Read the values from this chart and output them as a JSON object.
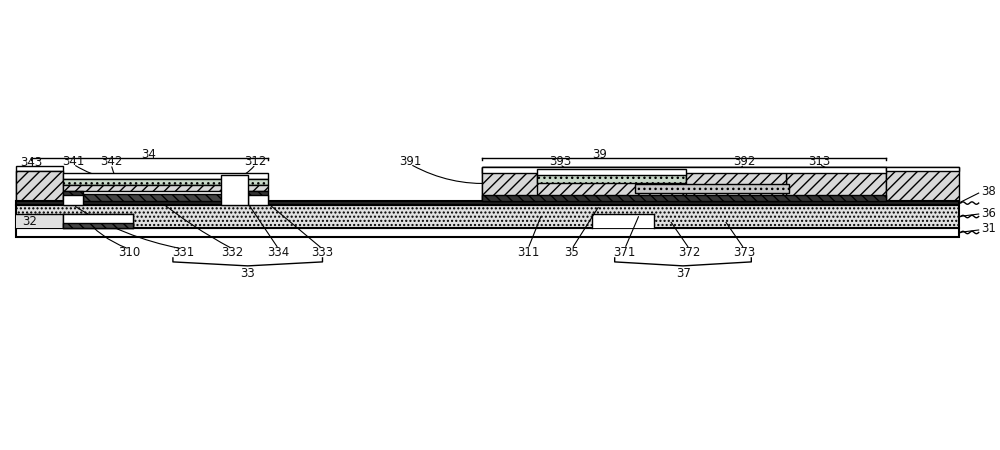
{
  "fig_width": 10.0,
  "fig_height": 4.5,
  "dpi": 100,
  "bg_color": "#ffffff",
  "line_color": "#000000"
}
